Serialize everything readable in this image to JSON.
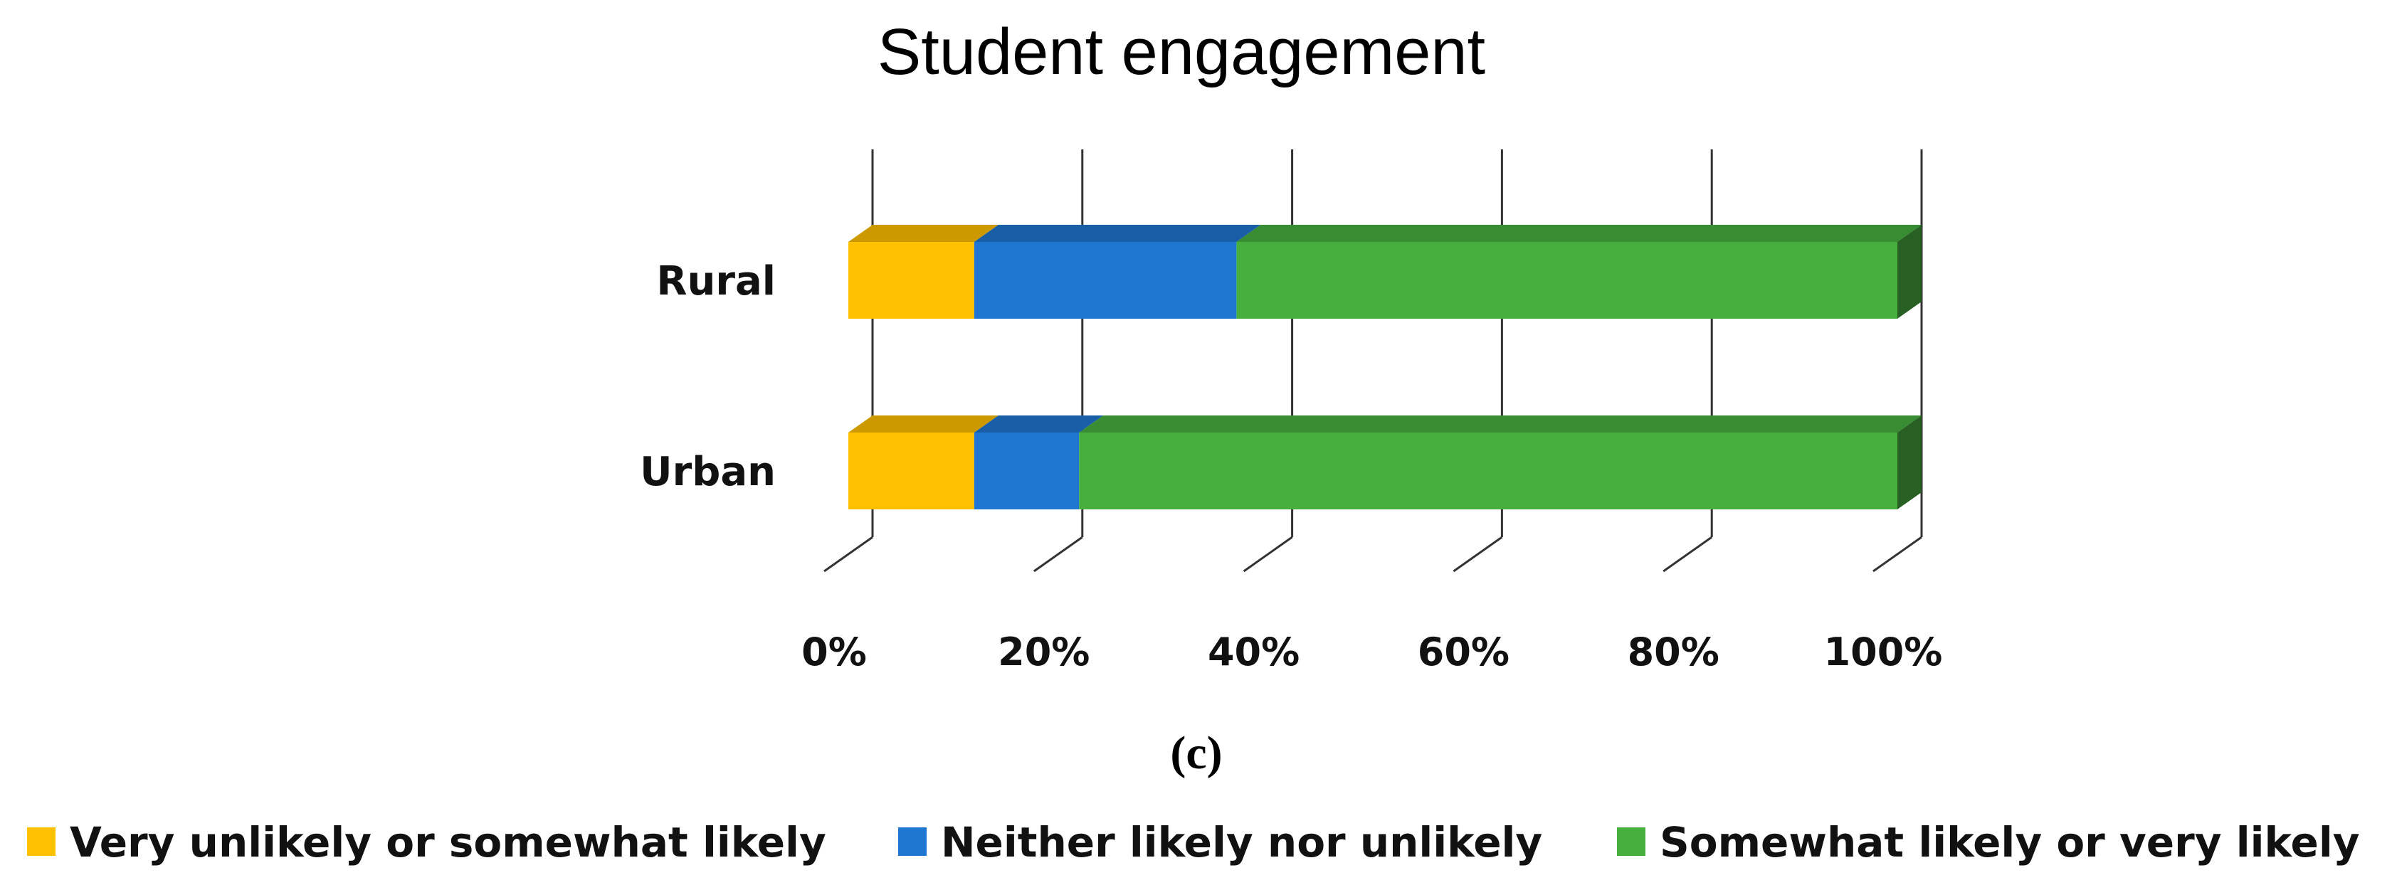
{
  "chart_data": {
    "type": "bar",
    "orientation": "horizontal",
    "stacked": "percent",
    "style": "3d",
    "title": "Student engagement",
    "categories": [
      "Rural",
      "Urban"
    ],
    "series": [
      {
        "name": "Very unlikely or somewhat likely",
        "values": [
          12,
          12
        ],
        "color": "#FFC000"
      },
      {
        "name": "Neither likely nor unlikely",
        "values": [
          25,
          10
        ],
        "color": "#1F77D1"
      },
      {
        "name": "Somewhat likely or very likely",
        "values": [
          63,
          78
        ],
        "color": "#46AF3D"
      }
    ],
    "xlim": [
      0,
      100
    ],
    "x_ticks": [
      "0%",
      "20%",
      "40%",
      "60%",
      "80%",
      "100%"
    ],
    "grid": true,
    "legend_position": "bottom",
    "panel_label": "(c)"
  }
}
